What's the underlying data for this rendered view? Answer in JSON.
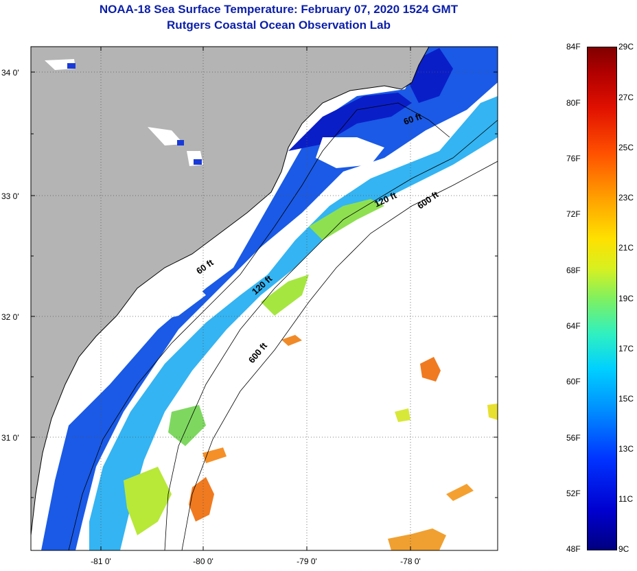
{
  "header": {
    "title": "NOAA-18 Sea Surface Temperature:  February 07, 2020 1524 GMT",
    "subtitle": "Rutgers Coastal Ocean Observation Lab"
  },
  "map": {
    "lat_ticks": [
      "34 0'",
      "33 0'",
      "32 0'",
      "31 0'"
    ],
    "lon_ticks": [
      "-81 0'",
      "-80 0'",
      "-79 0'",
      "-78 0'"
    ],
    "isobaths": {
      "shallow": "60 ft",
      "mid": "120 ft",
      "deep": "600 ft"
    },
    "colors": {
      "land": "#b4b4b4",
      "cloud": "#ffffff",
      "cold": "#0a2ad8",
      "mid": "#2aa8f0",
      "warm": "#a8e040",
      "hot": "#f08020"
    }
  },
  "colorbar": {
    "fahrenheit": [
      "84F",
      "80F",
      "76F",
      "72F",
      "68F",
      "64F",
      "60F",
      "56F",
      "52F",
      "48F"
    ],
    "celsius": [
      "29C",
      "27C",
      "25C",
      "23C",
      "21C",
      "19C",
      "17C",
      "15C",
      "13C",
      "11C",
      "9C"
    ]
  }
}
